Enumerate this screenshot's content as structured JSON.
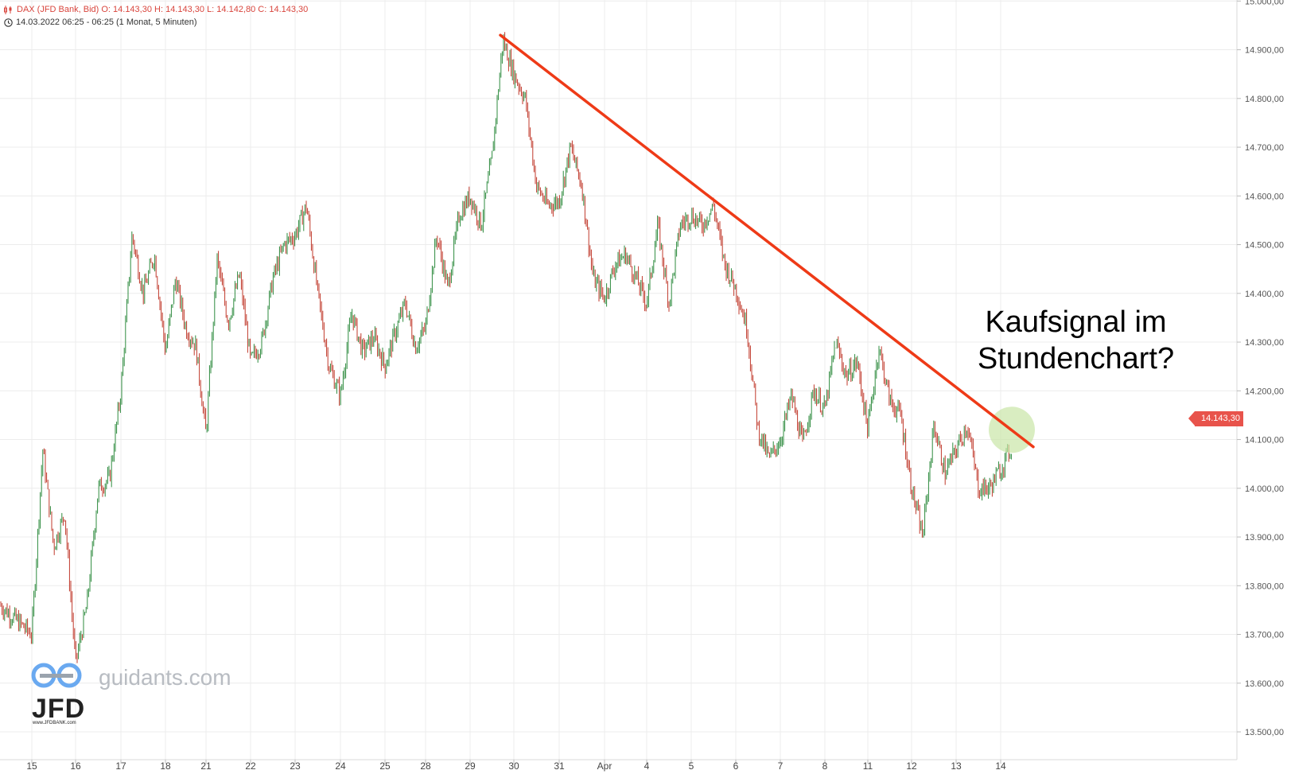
{
  "header": {
    "line1": "DAX (JFD Bank, Bid)   O: 14.143,30   H: 14.143,30   L: 14.142,80   C: 14.143,30",
    "line2": "14.03.2022 06:25 - 06:25   (1 Monat, 5 Minuten)",
    "line1_color": "#d9453d"
  },
  "watermark": {
    "site": "guidants.com",
    "brand": "JFD",
    "url": "www.JFDBANK.com"
  },
  "annotation": {
    "line1": "Kaufsignal im",
    "line2": "Stundenchart?"
  },
  "last_price_label": "14.143,30",
  "colors": {
    "up": "#2e8b3e",
    "down": "#c0392b",
    "trendline": "#ee3a17",
    "highlight": "#c9e6a6",
    "grid": "#ececec",
    "price_tag": "#e8534b"
  },
  "chart_data": {
    "type": "line",
    "title": "",
    "xlabel": "",
    "ylabel": "",
    "ylim": [
      13500,
      15000
    ],
    "y_ticks": [
      13500,
      13600,
      13700,
      13800,
      13900,
      14000,
      14100,
      14200,
      14300,
      14400,
      14500,
      14600,
      14700,
      14800,
      14900,
      15000
    ],
    "y_tick_labels": [
      "13.500,00",
      "13.600,00",
      "13.700,00",
      "13.800,00",
      "13.900,00",
      "14.000,00",
      "14.100,00",
      "14.200,00",
      "14.300,00",
      "14.400,00",
      "14.500,00",
      "14.600,00",
      "14.700,00",
      "14.800,00",
      "14.900,00",
      "15.000,00"
    ],
    "x_tick_labels": [
      "15",
      "16",
      "17",
      "18",
      "21",
      "22",
      "23",
      "24",
      "25",
      "28",
      "29",
      "30",
      "31",
      "Apr",
      "4",
      "5",
      "6",
      "7",
      "8",
      "11",
      "12",
      "13",
      "14"
    ],
    "grid": true,
    "series": [
      {
        "style": "candlestick (5-minute bars), approximate price path",
        "x": [
          "15",
          "15",
          "15",
          "15",
          "16",
          "16",
          "16",
          "16",
          "17",
          "17",
          "17",
          "17",
          "18",
          "18",
          "18",
          "18",
          "21",
          "21",
          "21",
          "21",
          "22",
          "22",
          "22",
          "22",
          "23",
          "23",
          "23",
          "23",
          "24",
          "24",
          "24",
          "24",
          "25",
          "25",
          "25",
          "25",
          "28",
          "28",
          "28",
          "28",
          "29",
          "29",
          "29",
          "29",
          "30",
          "30",
          "30",
          "30",
          "31",
          "31",
          "31",
          "31",
          "Apr",
          "Apr",
          "Apr",
          "Apr",
          "4",
          "4",
          "4",
          "4",
          "5",
          "5",
          "5",
          "5",
          "6",
          "6",
          "6",
          "6",
          "7",
          "7",
          "7",
          "7",
          "8",
          "8",
          "8",
          "8",
          "11",
          "11",
          "11",
          "11",
          "12",
          "12",
          "12",
          "12",
          "13",
          "13",
          "13",
          "13",
          "14",
          "14",
          "14"
        ],
        "values": [
          13700,
          14080,
          13880,
          13950,
          13640,
          13760,
          14000,
          14020,
          14200,
          14520,
          14400,
          14480,
          14280,
          14430,
          14330,
          14290,
          14110,
          14470,
          14340,
          14440,
          14260,
          14300,
          14430,
          14500,
          14520,
          14580,
          14400,
          14250,
          14190,
          14360,
          14280,
          14310,
          14250,
          14320,
          14380,
          14290,
          14330,
          14520,
          14410,
          14560,
          14600,
          14540,
          14680,
          14920,
          14850,
          14800,
          14620,
          14580,
          14590,
          14700,
          14620,
          14430,
          14390,
          14460,
          14480,
          14430,
          14380,
          14540,
          14380,
          14540,
          14560,
          14540,
          14580,
          14460,
          14410,
          14330,
          14120,
          14060,
          14100,
          14190,
          14090,
          14200,
          14160,
          14300,
          14230,
          14260,
          14120,
          14290,
          14180,
          14150,
          14000,
          13900,
          14130,
          14030,
          14080,
          14130,
          14000,
          14000,
          14040,
          14100,
          14143.3
        ]
      }
    ],
    "trendline": {
      "from": {
        "x": "29",
        "y": 14930
      },
      "to": {
        "x": "14",
        "y": 14085
      }
    },
    "highlight_circle_at": {
      "x": "14",
      "y": 14120
    },
    "last_price": 14143.3
  }
}
